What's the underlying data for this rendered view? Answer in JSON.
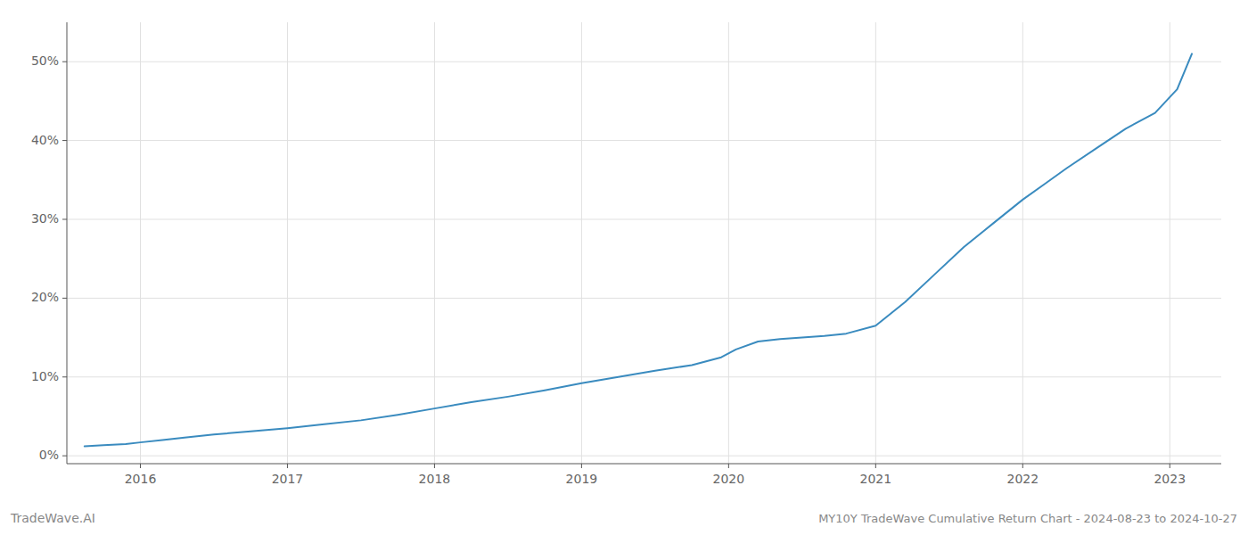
{
  "chart_data": {
    "type": "line",
    "title": "MY10Y TradeWave Cumulative Return Chart - 2024-08-23 to 2024-10-27",
    "annotations": [
      "TradeWave.AI"
    ],
    "color": "#3a8bbf",
    "grid": true,
    "x": [
      2015.62,
      2015.75,
      2015.9,
      2016.0,
      2016.15,
      2016.3,
      2016.5,
      2016.75,
      2017.0,
      2017.25,
      2017.5,
      2017.75,
      2018.0,
      2018.25,
      2018.5,
      2018.75,
      2019.0,
      2019.25,
      2019.5,
      2019.75,
      2019.95,
      2020.05,
      2020.2,
      2020.35,
      2020.5,
      2020.65,
      2020.8,
      2021.0,
      2021.2,
      2021.4,
      2021.6,
      2021.8,
      2022.0,
      2022.15,
      2022.3,
      2022.5,
      2022.7,
      2022.9,
      2023.05,
      2023.15
    ],
    "values": [
      1.2,
      1.35,
      1.5,
      1.7,
      2.0,
      2.3,
      2.7,
      3.1,
      3.5,
      4.0,
      4.5,
      5.2,
      6.0,
      6.8,
      7.5,
      8.3,
      9.2,
      10.0,
      10.8,
      11.5,
      12.5,
      13.5,
      14.5,
      14.8,
      15.0,
      15.2,
      15.5,
      16.5,
      19.5,
      23.0,
      26.5,
      29.5,
      32.5,
      34.5,
      36.5,
      39.0,
      41.5,
      43.5,
      46.5,
      51.0
    ],
    "xlim": [
      2015.5,
      2023.35
    ],
    "xticks": [
      2016,
      2017,
      2018,
      2019,
      2020,
      2021,
      2022,
      2023
    ],
    "ylim": [
      -1,
      55
    ],
    "yticks": [
      {
        "value": 0,
        "label": "0%"
      },
      {
        "value": 10,
        "label": "10%"
      },
      {
        "value": 20,
        "label": "20%"
      },
      {
        "value": 30,
        "label": "30%"
      },
      {
        "value": 40,
        "label": "40%"
      },
      {
        "value": 50,
        "label": "50%"
      }
    ]
  }
}
